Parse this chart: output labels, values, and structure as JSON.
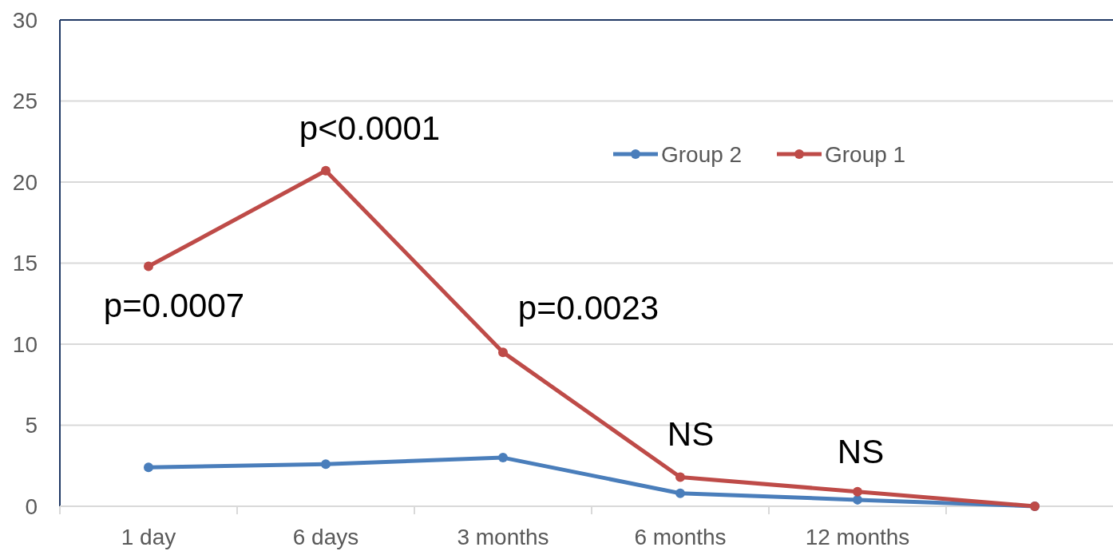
{
  "chart_data": {
    "type": "line",
    "categories": [
      "1 day",
      "6 days",
      "3 months",
      "6 months",
      "12 months",
      null
    ],
    "series": [
      {
        "name": "Group 2",
        "color": "#4a7ebb",
        "values": [
          2.4,
          2.6,
          3.0,
          0.8,
          0.4,
          0
        ]
      },
      {
        "name": "Group 1",
        "color": "#be4b48",
        "values": [
          14.8,
          20.7,
          9.5,
          1.8,
          0.9,
          0
        ]
      }
    ],
    "ylim": [
      0,
      30
    ],
    "yticks": [
      0,
      5,
      10,
      15,
      20,
      25,
      30
    ],
    "grid": "y",
    "legend": "top right",
    "marker": "circle",
    "line_style": "solid",
    "annotations": [
      "p=0.0007",
      "p<0.0001",
      "p=0.0023",
      "NS",
      "NS"
    ]
  }
}
